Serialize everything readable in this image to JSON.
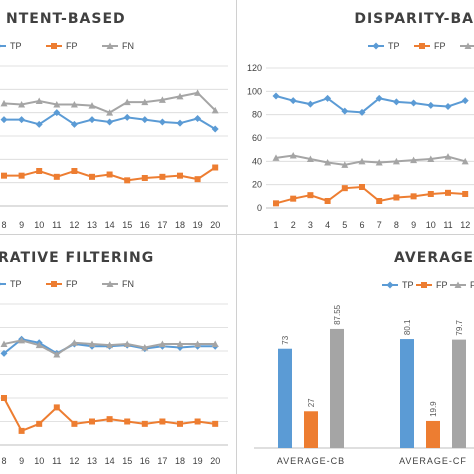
{
  "colors": {
    "tp": "#5b9bd5",
    "fp": "#ed7d31",
    "fn": "#a5a5a5",
    "grid": "#d9d9d9",
    "axis": "#bfbfbf"
  },
  "chart_data": [
    {
      "type": "line",
      "title": "NTENT-BASED",
      "x": [
        8,
        9,
        10,
        11,
        12,
        13,
        14,
        15,
        16,
        17,
        18,
        19,
        20
      ],
      "ylim": [
        0,
        120
      ],
      "series": [
        {
          "name": "TP",
          "values": [
            74,
            74,
            70,
            80,
            70,
            74,
            72,
            76,
            74,
            72,
            71,
            75,
            66
          ]
        },
        {
          "name": "FP",
          "values": [
            26,
            26,
            30,
            25,
            30,
            25,
            27,
            22,
            24,
            25,
            26,
            23,
            33
          ]
        },
        {
          "name": "FN",
          "values": [
            88,
            87,
            90,
            87,
            87,
            86,
            80,
            89,
            89,
            91,
            94,
            97,
            82
          ]
        }
      ]
    },
    {
      "type": "line",
      "title": "DISPARITY-BA",
      "x": [
        1,
        2,
        3,
        4,
        5,
        6,
        7,
        8,
        9,
        10,
        11,
        12
      ],
      "yticks": [
        0,
        20,
        40,
        60,
        80,
        100,
        120
      ],
      "ylim": [
        0,
        120
      ],
      "series": [
        {
          "name": "TP",
          "values": [
            96,
            92,
            89,
            94,
            83,
            82,
            94,
            91,
            90,
            88,
            87,
            92
          ]
        },
        {
          "name": "FP",
          "values": [
            4,
            8,
            11,
            6,
            17,
            18,
            6,
            9,
            10,
            12,
            13,
            12
          ]
        },
        {
          "name": "FN",
          "values": [
            43,
            45,
            42,
            39,
            37,
            40,
            39,
            40,
            41,
            42,
            44,
            40
          ]
        }
      ]
    },
    {
      "type": "line",
      "title": "RATIVE FILTERING",
      "x": [
        8,
        9,
        10,
        11,
        12,
        13,
        14,
        15,
        16,
        17,
        18,
        19,
        20
      ],
      "ylim": [
        0,
        120
      ],
      "series": [
        {
          "name": "TP",
          "values": [
            78,
            90,
            87,
            78,
            86,
            84,
            84,
            85,
            82,
            84,
            83,
            84,
            84
          ]
        },
        {
          "name": "FP",
          "values": [
            40,
            12,
            18,
            32,
            18,
            20,
            22,
            20,
            18,
            20,
            18,
            20,
            18
          ]
        },
        {
          "name": "FN",
          "values": [
            86,
            89,
            85,
            77,
            87,
            86,
            85,
            86,
            83,
            86,
            86,
            86,
            86
          ]
        }
      ]
    },
    {
      "type": "bar",
      "title": "AVERAGE",
      "categories": [
        "AVERAGE-CB",
        "AVERAGE-CF"
      ],
      "ylim": [
        0,
        100
      ],
      "series": [
        {
          "name": "TP",
          "values": [
            73,
            80.1
          ]
        },
        {
          "name": "FP",
          "values": [
            27,
            19.9
          ]
        },
        {
          "name": "FN",
          "values": [
            87.55,
            79.7
          ]
        }
      ]
    }
  ]
}
